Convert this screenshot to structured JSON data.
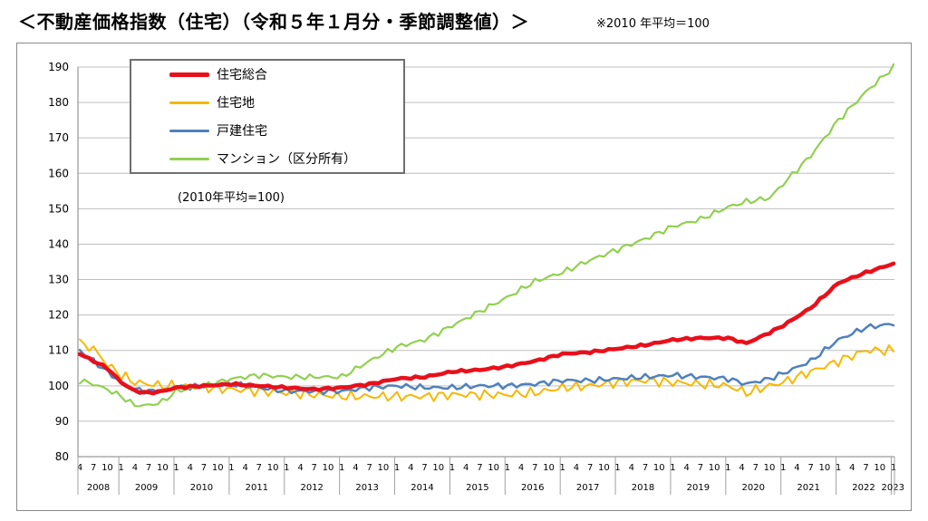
{
  "header": {
    "title": "＜不動産価格指数（住宅）（令和５年１月分・季節調整値）＞",
    "note": "※2010 年平均＝100"
  },
  "inner_note": "(2010年平均=100)",
  "colors": {
    "sogo": "#e8101b",
    "takuchi": "#f6b800",
    "koken": "#4f81bd",
    "mansion": "#92d050"
  },
  "chart_data": {
    "type": "line",
    "title": "＜不動産価格指数（住宅）（令和５年１月分・季節調整値）＞",
    "ylim": [
      80,
      190
    ],
    "yticks": [
      80,
      90,
      100,
      110,
      120,
      130,
      140,
      150,
      160,
      170,
      180,
      190
    ],
    "grid": true,
    "legend_position": "top-left",
    "x_start": "2008-04",
    "x_end": "2023-01",
    "month_tick_labels": [
      "4",
      "7",
      "10",
      "1"
    ],
    "years": [
      "2008",
      "2009",
      "2010",
      "2011",
      "2012",
      "2013",
      "2014",
      "2015",
      "2016",
      "2017",
      "2018",
      "2019",
      "2020",
      "2021",
      "2022",
      "2023"
    ],
    "series": [
      {
        "name": "住宅総合",
        "color_key": "sogo",
        "anchors": [
          [
            "2008-04",
            109
          ],
          [
            "2008-07",
            107
          ],
          [
            "2008-10",
            105
          ],
          [
            "2009-01",
            101
          ],
          [
            "2009-04",
            98.5
          ],
          [
            "2009-07",
            98
          ],
          [
            "2009-10",
            98.5
          ],
          [
            "2010-01",
            99.5
          ],
          [
            "2010-07",
            100
          ],
          [
            "2011-01",
            100.5
          ],
          [
            "2011-07",
            100
          ],
          [
            "2012-01",
            99.5
          ],
          [
            "2012-07",
            99
          ],
          [
            "2013-01",
            99.5
          ],
          [
            "2013-07",
            100.5
          ],
          [
            "2014-01",
            102
          ],
          [
            "2014-07",
            102.5
          ],
          [
            "2015-01",
            104
          ],
          [
            "2015-07",
            104.5
          ],
          [
            "2016-01",
            105.5
          ],
          [
            "2016-07",
            107
          ],
          [
            "2017-01",
            109
          ],
          [
            "2017-07",
            109.5
          ],
          [
            "2018-01",
            110.5
          ],
          [
            "2018-07",
            111.5
          ],
          [
            "2019-01",
            113
          ],
          [
            "2019-07",
            113.5
          ],
          [
            "2020-01",
            113.5
          ],
          [
            "2020-05",
            112
          ],
          [
            "2020-10",
            115
          ],
          [
            "2021-01",
            117
          ],
          [
            "2021-07",
            122
          ],
          [
            "2022-01",
            129
          ],
          [
            "2022-07",
            132
          ],
          [
            "2023-01",
            134.5
          ]
        ]
      },
      {
        "name": "住宅地",
        "color_key": "takuchi",
        "anchors": [
          [
            "2008-04",
            112
          ],
          [
            "2008-07",
            110.5
          ],
          [
            "2008-10",
            106
          ],
          [
            "2009-01",
            103
          ],
          [
            "2009-04",
            101
          ],
          [
            "2009-07",
            100.5
          ],
          [
            "2009-10",
            100
          ],
          [
            "2010-01",
            100
          ],
          [
            "2010-07",
            99.5
          ],
          [
            "2011-01",
            99
          ],
          [
            "2011-07",
            98.5
          ],
          [
            "2012-01",
            98
          ],
          [
            "2012-07",
            97.5
          ],
          [
            "2013-01",
            97
          ],
          [
            "2013-07",
            97
          ],
          [
            "2014-01",
            97
          ],
          [
            "2014-07",
            97
          ],
          [
            "2015-01",
            97.5
          ],
          [
            "2015-07",
            97.5
          ],
          [
            "2016-01",
            97.5
          ],
          [
            "2016-07",
            98
          ],
          [
            "2017-01",
            99.5
          ],
          [
            "2017-07",
            100
          ],
          [
            "2018-01",
            101
          ],
          [
            "2018-07",
            101.5
          ],
          [
            "2019-01",
            101
          ],
          [
            "2019-07",
            100.5
          ],
          [
            "2020-01",
            100
          ],
          [
            "2020-05",
            98
          ],
          [
            "2020-10",
            100
          ],
          [
            "2021-01",
            101
          ],
          [
            "2021-07",
            104
          ],
          [
            "2022-01",
            107
          ],
          [
            "2022-07",
            110
          ],
          [
            "2023-01",
            110
          ]
        ]
      },
      {
        "name": "戸建住宅",
        "color_key": "koken",
        "anchors": [
          [
            "2008-04",
            110
          ],
          [
            "2008-07",
            107
          ],
          [
            "2008-10",
            104
          ],
          [
            "2009-01",
            101
          ],
          [
            "2009-04",
            99
          ],
          [
            "2009-07",
            98.5
          ],
          [
            "2009-10",
            98.5
          ],
          [
            "2010-01",
            99.5
          ],
          [
            "2010-07",
            100
          ],
          [
            "2011-01",
            100.5
          ],
          [
            "2011-07",
            99.5
          ],
          [
            "2012-01",
            98.5
          ],
          [
            "2012-07",
            98.5
          ],
          [
            "2013-01",
            98.5
          ],
          [
            "2013-07",
            99.5
          ],
          [
            "2014-01",
            100
          ],
          [
            "2014-07",
            99.5
          ],
          [
            "2015-01",
            99.5
          ],
          [
            "2015-07",
            100
          ],
          [
            "2016-01",
            100
          ],
          [
            "2016-07",
            100.5
          ],
          [
            "2017-01",
            101.5
          ],
          [
            "2017-07",
            101.5
          ],
          [
            "2018-01",
            102
          ],
          [
            "2018-07",
            102.5
          ],
          [
            "2019-01",
            103
          ],
          [
            "2019-07",
            102.5
          ],
          [
            "2020-01",
            102
          ],
          [
            "2020-05",
            100.5
          ],
          [
            "2020-10",
            102
          ],
          [
            "2021-01",
            103.5
          ],
          [
            "2021-07",
            107
          ],
          [
            "2022-01",
            113
          ],
          [
            "2022-07",
            116.5
          ],
          [
            "2023-01",
            117.5
          ]
        ]
      },
      {
        "name": "マンション（区分所有）",
        "color_key": "mansion",
        "anchors": [
          [
            "2008-04",
            101.5
          ],
          [
            "2008-07",
            100.5
          ],
          [
            "2008-10",
            99
          ],
          [
            "2009-01",
            97
          ],
          [
            "2009-04",
            94.5
          ],
          [
            "2009-07",
            94.5
          ],
          [
            "2009-10",
            95.5
          ],
          [
            "2010-01",
            98.5
          ],
          [
            "2010-07",
            100
          ],
          [
            "2011-01",
            102
          ],
          [
            "2011-07",
            103
          ],
          [
            "2012-01",
            102.5
          ],
          [
            "2012-07",
            102.5
          ],
          [
            "2013-01",
            102.5
          ],
          [
            "2013-07",
            107
          ],
          [
            "2014-01",
            111
          ],
          [
            "2014-07",
            113
          ],
          [
            "2015-01",
            117
          ],
          [
            "2015-07",
            121
          ],
          [
            "2016-01",
            125
          ],
          [
            "2016-07",
            129.5
          ],
          [
            "2017-01",
            132
          ],
          [
            "2017-07",
            135.5
          ],
          [
            "2018-01",
            138.5
          ],
          [
            "2018-07",
            141.5
          ],
          [
            "2019-01",
            145
          ],
          [
            "2019-07",
            147
          ],
          [
            "2020-01",
            150.5
          ],
          [
            "2020-05",
            152
          ],
          [
            "2020-10",
            153
          ],
          [
            "2021-01",
            157
          ],
          [
            "2021-07",
            165
          ],
          [
            "2022-01",
            175
          ],
          [
            "2022-07",
            183
          ],
          [
            "2023-01",
            190
          ]
        ]
      }
    ]
  }
}
